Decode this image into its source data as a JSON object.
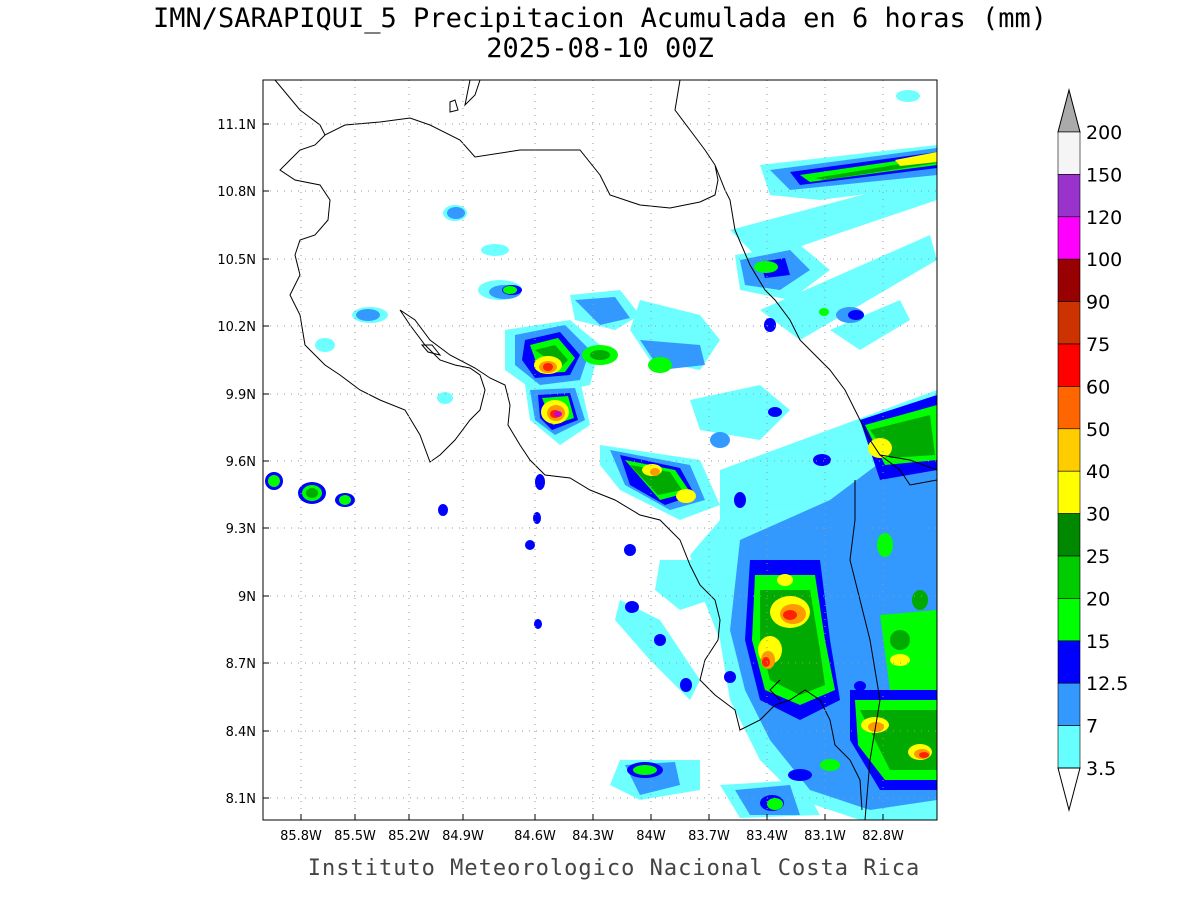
{
  "title_line1": "IMN/SARAPIQUI_5 Precipitacion Acumulada en 6 horas (mm)",
  "title_line2": "2025-08-10 00Z",
  "footer": "Instituto Meteorologico Nacional Costa Rica",
  "map": {
    "lon_range": [
      -86.0,
      -83.0
    ],
    "lat_range": [
      8.0,
      11.3
    ],
    "lon_ticks": [
      "85.8W",
      "85.5W",
      "85.2W",
      "84.9W",
      "84.6W",
      "84.3W",
      "84W",
      "83.7W",
      "83.4W",
      "83.1W",
      "82.8W"
    ],
    "lat_ticks": [
      "11.1N",
      "10.8N",
      "10.5N",
      "10.2N",
      "9.9N",
      "9.6N",
      "9.3N",
      "9N",
      "8.7N",
      "8.4N",
      "8.1N"
    ],
    "grid": "dotted"
  },
  "colorbar": {
    "labels": [
      "3.5",
      "7",
      "12.5",
      "15",
      "20",
      "25",
      "30",
      "40",
      "50",
      "60",
      "75",
      "90",
      "100",
      "120",
      "150",
      "200"
    ],
    "colors": [
      "#66ffff",
      "#3399ff",
      "#0000ff",
      "#00ff00",
      "#00cc00",
      "#008800",
      "#ffff00",
      "#ffcc00",
      "#ff6600",
      "#ff0000",
      "#cc3300",
      "#990000",
      "#ff00ff",
      "#9933cc",
      "#f5f5f5",
      "#aaaaaa"
    ]
  }
}
